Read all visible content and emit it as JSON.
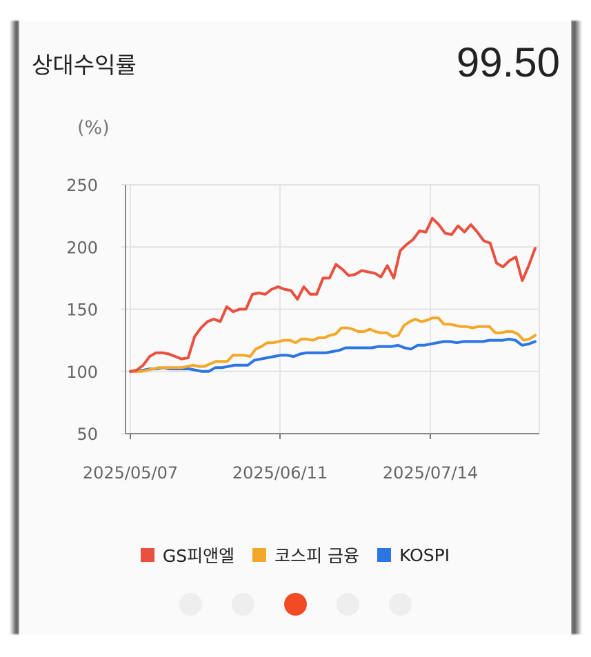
{
  "header": {
    "title": "상대수익률",
    "value": "99.50"
  },
  "chart_data": {
    "type": "line",
    "unit_label": "(%)",
    "ylim": [
      50,
      250
    ],
    "y_ticks": [
      250,
      200,
      150,
      100,
      50
    ],
    "x_tick_labels": [
      "2025/05/07",
      "2025/06/11",
      "2025/07/14"
    ],
    "grid": true,
    "legend_position": "bottom",
    "series": [
      {
        "name": "GS피앤엘",
        "color": "#e8503f",
        "values": [
          100,
          101,
          105,
          112,
          115,
          115,
          114,
          112,
          110,
          111,
          128,
          135,
          140,
          142,
          140,
          152,
          148,
          150,
          150,
          162,
          163,
          162,
          166,
          168,
          166,
          165,
          158,
          168,
          162,
          162,
          175,
          175,
          186,
          182,
          177,
          178,
          181,
          180,
          179,
          176,
          185,
          175,
          197,
          202,
          206,
          213,
          212,
          223,
          218,
          211,
          210,
          217,
          212,
          218,
          212,
          205,
          203,
          187,
          184,
          189,
          192,
          173,
          185,
          199
        ]
      },
      {
        "name": "코스피 금융",
        "color": "#f4a82a",
        "values": [
          100,
          100,
          100,
          101,
          102,
          103,
          103,
          103,
          103,
          103,
          104,
          105,
          104,
          104,
          106,
          108,
          108,
          108,
          113,
          113,
          113,
          112,
          118,
          120,
          123,
          123,
          124,
          125,
          125,
          123,
          126,
          126,
          125,
          127,
          127,
          129,
          130,
          135,
          135,
          134,
          132,
          132,
          134,
          132,
          131,
          131,
          128,
          129,
          137,
          140,
          142,
          140,
          141,
          143,
          143,
          138,
          138,
          137,
          136,
          136,
          135,
          136,
          136,
          136,
          131,
          131,
          132,
          132,
          130,
          125,
          126,
          129
        ]
      },
      {
        "name": "KOSPI",
        "color": "#2c75e4",
        "values": [
          100,
          100,
          101,
          102,
          102,
          103,
          102,
          102,
          102,
          102,
          101,
          100,
          100,
          103,
          103,
          104,
          105,
          105,
          105,
          109,
          110,
          111,
          112,
          113,
          113,
          112,
          114,
          115,
          115,
          115,
          115,
          116,
          117,
          119,
          119,
          119,
          119,
          119,
          120,
          120,
          120,
          121,
          119,
          118,
          121,
          121,
          122,
          123,
          124,
          124,
          123,
          124,
          124,
          124,
          124,
          125,
          125,
          125,
          126,
          125,
          121,
          122,
          124
        ]
      }
    ]
  },
  "pagination": {
    "count": 5,
    "active_index": 2
  }
}
